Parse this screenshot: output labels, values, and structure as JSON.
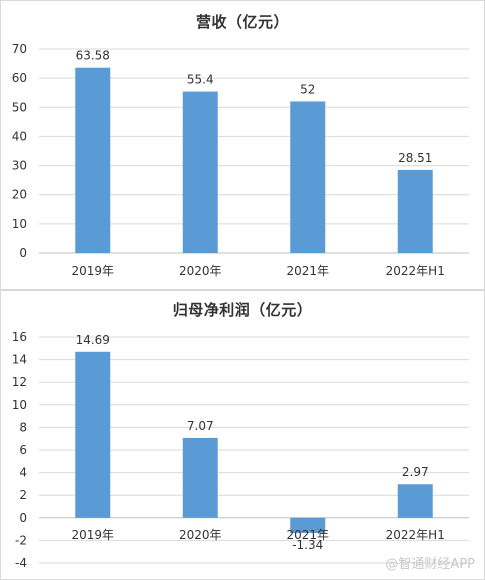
{
  "chart_data": [
    {
      "type": "bar",
      "title": "营收（亿元）",
      "categories": [
        "2019年",
        "2020年",
        "2021年",
        "2022年H1"
      ],
      "values": [
        63.58,
        55.4,
        52,
        28.51
      ],
      "data_labels": [
        "63.58",
        "55.4",
        "52",
        "28.51"
      ],
      "ylim": [
        0,
        70
      ],
      "yticks": [
        0,
        10,
        20,
        30,
        40,
        50,
        60,
        70
      ],
      "grid": true,
      "color": "#5b9bd5"
    },
    {
      "type": "bar",
      "title": "归母净利润（亿元）",
      "categories": [
        "2019年",
        "2020年",
        "2021年",
        "2022年H1"
      ],
      "values": [
        14.69,
        7.07,
        -1.34,
        2.97
      ],
      "data_labels": [
        "14.69",
        "7.07",
        "-1.34",
        "2.97"
      ],
      "ylim": [
        -4,
        16
      ],
      "yticks": [
        -4,
        -2,
        0,
        2,
        4,
        6,
        8,
        10,
        12,
        14,
        16
      ],
      "grid": true,
      "color": "#5b9bd5"
    }
  ],
  "watermark": "@智通财经APP"
}
